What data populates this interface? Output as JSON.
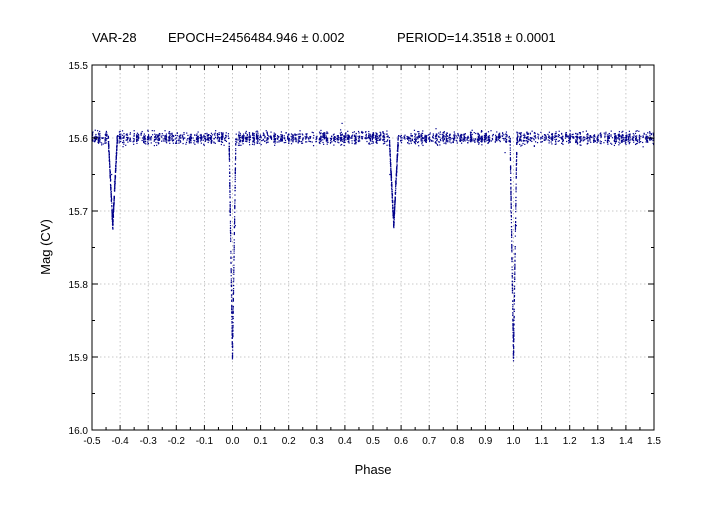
{
  "chart_data": {
    "type": "scatter",
    "title": {
      "star": "VAR-28",
      "epoch": "EPOCH=2456484.946 ± 0.002",
      "period": "PERIOD=14.3518 ± 0.0001"
    },
    "xlabel": "Phase",
    "ylabel": "Mag (CV)",
    "xlim": [
      -0.5,
      1.5
    ],
    "ylim": [
      15.5,
      16.0
    ],
    "y_inverted": true,
    "grid": true,
    "x_ticks": [
      "-0.5",
      "-0.4",
      "-0.3",
      "-0.2",
      "-0.1",
      "0.0",
      "0.1",
      "0.2",
      "0.3",
      "0.4",
      "0.5",
      "0.6",
      "0.7",
      "0.8",
      "0.9",
      "1.0",
      "1.1",
      "1.2",
      "1.3",
      "1.4",
      "1.5"
    ],
    "y_ticks": [
      "15.5",
      "15.6",
      "15.7",
      "15.8",
      "15.9",
      "16.0"
    ],
    "marker_color": "#00008b",
    "baseline_mag": 15.6,
    "eclipses": [
      {
        "name": "primary",
        "phase": 0.0,
        "depth_mag": 15.9
      },
      {
        "name": "secondary",
        "phase": 0.574,
        "depth_mag": 15.72
      },
      {
        "name": "primary",
        "phase": 1.0,
        "depth_mag": 15.9
      },
      {
        "name": "secondary",
        "phase": -0.426,
        "depth_mag": 15.72
      }
    ],
    "series": [
      {
        "x": [
          -0.5,
          -0.48,
          -0.46,
          -0.44,
          -0.43,
          -0.426,
          -0.42,
          -0.4,
          -0.38,
          -0.35,
          -0.32,
          -0.3,
          -0.27,
          -0.24,
          -0.2,
          -0.17,
          -0.14,
          -0.1,
          -0.06,
          -0.03,
          -0.01,
          0.0,
          0.01,
          0.03,
          0.06,
          0.09,
          0.12,
          0.15,
          0.18,
          0.2,
          0.24,
          0.27,
          0.3,
          0.33,
          0.36,
          0.39,
          0.42,
          0.45,
          0.48,
          0.5,
          0.52,
          0.55,
          0.56,
          0.574,
          0.58,
          0.6,
          0.63,
          0.66,
          0.7,
          0.73,
          0.77,
          0.8,
          0.84,
          0.88,
          0.92,
          0.95,
          0.97,
          0.99,
          1.0,
          1.01,
          1.03,
          1.06,
          1.1,
          1.13,
          1.17,
          1.2,
          1.24,
          1.27,
          1.3,
          1.34,
          1.37,
          1.41,
          1.44,
          1.47,
          1.5
        ],
        "y": [
          15.6,
          15.59,
          15.6,
          15.61,
          15.65,
          15.72,
          15.66,
          15.6,
          15.61,
          15.59,
          15.6,
          15.6,
          15.61,
          15.59,
          15.6,
          15.6,
          15.6,
          15.6,
          15.59,
          15.61,
          15.7,
          15.9,
          15.72,
          15.61,
          15.6,
          15.6,
          15.59,
          15.61,
          15.6,
          15.6,
          15.6,
          15.6,
          15.6,
          15.6,
          15.6,
          15.58,
          15.6,
          15.6,
          15.6,
          15.6,
          15.6,
          15.61,
          15.65,
          15.72,
          15.66,
          15.6,
          15.6,
          15.6,
          15.6,
          15.61,
          15.6,
          15.6,
          15.6,
          15.6,
          15.59,
          15.6,
          15.62,
          15.7,
          15.9,
          15.72,
          15.61,
          15.6,
          15.6,
          15.6,
          15.6,
          15.6,
          15.61,
          15.6,
          15.6,
          15.6,
          15.6,
          15.6,
          15.59,
          15.6,
          15.6
        ]
      }
    ]
  }
}
